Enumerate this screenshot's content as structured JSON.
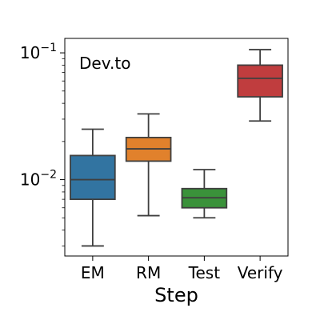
{
  "chart_data": {
    "type": "box",
    "title": "",
    "annotation": "Dev.to",
    "xlabel": "Step",
    "ylabel": "",
    "y_scale": "log",
    "ylim": [
      0.0025,
      0.13
    ],
    "y_ticks": [
      {
        "value": 0.01,
        "mantissa": "10",
        "exponent": "−2"
      },
      {
        "value": 0.1,
        "mantissa": "10",
        "exponent": "−1"
      }
    ],
    "grid": false,
    "categories": [
      "EM",
      "RM",
      "Test",
      "Verify"
    ],
    "boxes": [
      {
        "category": "EM",
        "whisker_low": 0.003,
        "q1": 0.007,
        "median": 0.01,
        "q3": 0.0155,
        "whisker_high": 0.025,
        "color": "#3274a1"
      },
      {
        "category": "RM",
        "whisker_low": 0.0052,
        "q1": 0.014,
        "median": 0.0175,
        "q3": 0.0215,
        "whisker_high": 0.033,
        "color": "#e1812c"
      },
      {
        "category": "Test",
        "whisker_low": 0.005,
        "q1": 0.006,
        "median": 0.0072,
        "q3": 0.0085,
        "whisker_high": 0.012,
        "color": "#3a923a"
      },
      {
        "category": "Verify",
        "whisker_low": 0.029,
        "q1": 0.045,
        "median": 0.063,
        "q3": 0.08,
        "whisker_high": 0.106,
        "color": "#c03d3e"
      }
    ]
  }
}
